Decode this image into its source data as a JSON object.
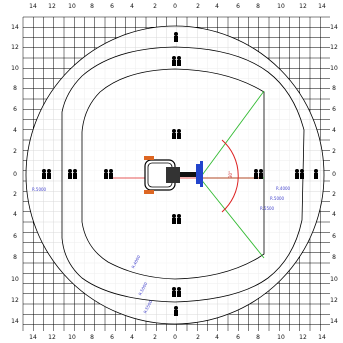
{
  "grid": {
    "top_ticks": [
      "14",
      "12",
      "10",
      "8",
      "6",
      "4",
      "2",
      "0",
      "2",
      "4",
      "6",
      "8",
      "10",
      "12",
      "14"
    ],
    "bottom_ticks": [
      "14",
      "12",
      "10",
      "8",
      "6",
      "4",
      "2",
      "0",
      "2",
      "4",
      "6",
      "8",
      "10",
      "12",
      "14"
    ],
    "left_ticks": [
      "14",
      "12",
      "10",
      "8",
      "6",
      "4",
      "2",
      "0",
      "2",
      "4",
      "6",
      "8",
      "10",
      "12",
      "14"
    ],
    "right_ticks": [
      "14",
      "12",
      "10",
      "8",
      "6",
      "4",
      "2",
      "0",
      "2",
      "4",
      "6",
      "8",
      "10",
      "12",
      "14"
    ]
  },
  "annotations": {
    "left_radius": "R.5000",
    "right_radius_1": "R.4000",
    "right_radius_2": "R.5000",
    "right_radius_3": "R.5500",
    "bottom_radius_1": "R.4000",
    "bottom_radius_2": "R.5000",
    "bottom_radius_3": "R.5500",
    "arc_angle": "30°"
  },
  "colors": {
    "grid": "#000000",
    "red": "#dd2222",
    "green": "#33bb33",
    "blue": "#3333cc"
  },
  "figure_icons": [
    "person-icon",
    "person-icon",
    "person-icon",
    "person-icon",
    "person-icon",
    "person-icon",
    "person-icon",
    "person-icon",
    "person-icon",
    "person-icon",
    "person-icon",
    "person-icon"
  ]
}
